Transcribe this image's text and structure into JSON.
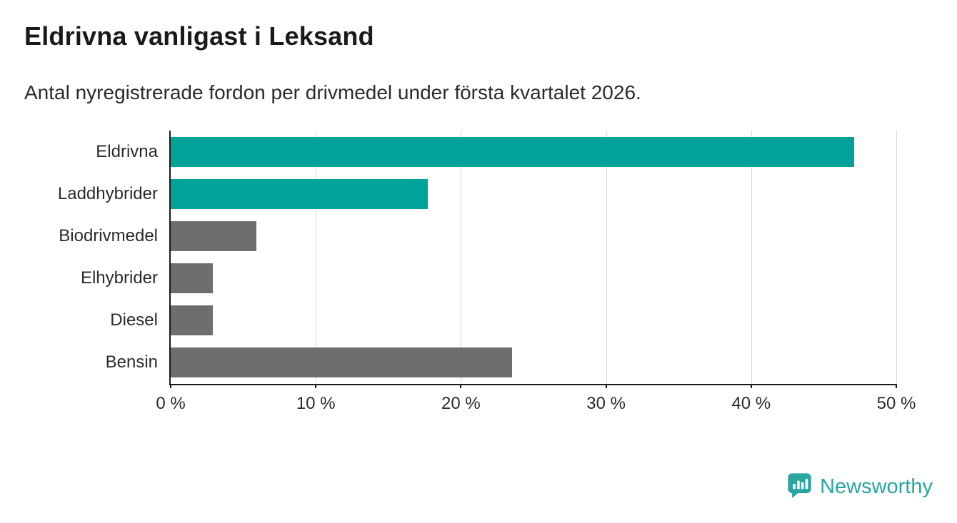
{
  "title": "Eldrivna vanligast i Leksand",
  "subtitle": "Antal nyregistrerade fordon per drivmedel under första kvartalet 2026.",
  "chart_data": {
    "type": "bar",
    "orientation": "horizontal",
    "title": "Eldrivna vanligast i Leksand",
    "subtitle": "Antal nyregistrerade fordon per drivmedel under första kvartalet 2026.",
    "categories": [
      "Eldrivna",
      "Laddhybrider",
      "Biodrivmedel",
      "Elhybrider",
      "Diesel",
      "Bensin"
    ],
    "values": [
      47.1,
      17.7,
      5.9,
      2.9,
      2.9,
      23.5
    ],
    "unit": "%",
    "bar_colors": [
      "#00a398",
      "#00a398",
      "#6e6e6e",
      "#6e6e6e",
      "#6e6e6e",
      "#6e6e6e"
    ],
    "xlabel": "",
    "ylabel": "",
    "xlim": [
      0,
      50
    ],
    "x_ticks": [
      0,
      10,
      20,
      30,
      40,
      50
    ],
    "x_tick_labels": [
      "0 %",
      "10 %",
      "20 %",
      "30 %",
      "40 %",
      "50 %"
    ],
    "grid": "vertical",
    "legend": "none"
  },
  "colors": {
    "teal": "#00a398",
    "gray": "#6e6e6e",
    "grid": "#d9d9d9",
    "axis": "#1a1a1a",
    "text": "#2b2b2b",
    "brand": "#2aa5a0"
  },
  "branding": {
    "logo_text": "Newsworthy",
    "logo_icon": "bar-chart-pin-icon"
  }
}
